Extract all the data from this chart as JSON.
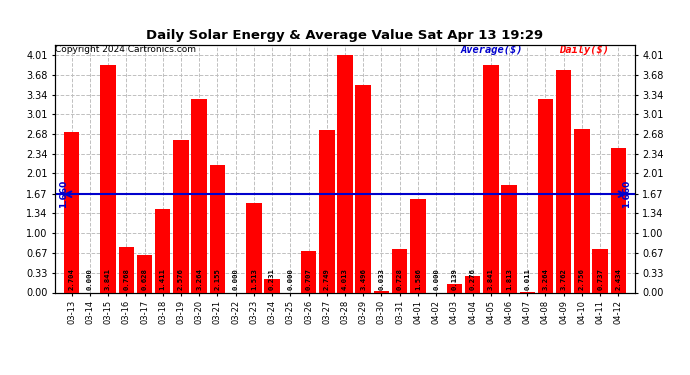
{
  "title": "Daily Solar Energy & Average Value Sat Apr 13 19:29",
  "copyright": "Copyright 2024 Cartronics.com",
  "legend_average": "Average($)",
  "legend_daily": "Daily($)",
  "average_value": 1.66,
  "average_label": "1.660",
  "bar_color": "#ff0000",
  "average_color": "#0000cd",
  "background_color": "#ffffff",
  "grid_color": "#c0c0c0",
  "yticks": [
    0.0,
    0.33,
    0.67,
    1.0,
    1.34,
    1.67,
    2.01,
    2.34,
    2.68,
    3.01,
    3.34,
    3.68,
    4.01
  ],
  "ylim": [
    0.0,
    4.18
  ],
  "categories": [
    "03-13",
    "03-14",
    "03-15",
    "03-16",
    "03-17",
    "03-18",
    "03-19",
    "03-20",
    "03-21",
    "03-22",
    "03-23",
    "03-24",
    "03-25",
    "03-26",
    "03-27",
    "03-28",
    "03-29",
    "03-30",
    "03-31",
    "04-01",
    "04-02",
    "04-03",
    "04-04",
    "04-05",
    "04-06",
    "04-07",
    "04-08",
    "04-09",
    "04-10",
    "04-11",
    "04-12"
  ],
  "values": [
    2.704,
    0.0,
    3.841,
    0.768,
    0.628,
    1.411,
    2.576,
    3.264,
    2.155,
    0.0,
    1.513,
    0.231,
    0.0,
    0.707,
    2.749,
    4.013,
    3.496,
    0.033,
    0.728,
    1.586,
    0.0,
    0.139,
    0.276,
    3.841,
    1.813,
    0.011,
    3.264,
    3.762,
    2.756,
    0.737,
    2.434
  ]
}
